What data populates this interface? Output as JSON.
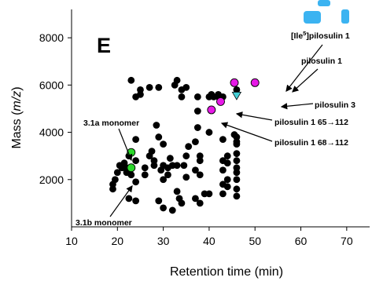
{
  "chart_data": {
    "type": "scatter",
    "panel_label": "E",
    "xlabel": "Retention time (min)",
    "ylabel_prefix": "Mass (",
    "ylabel_italic": "m/z",
    "ylabel_suffix": ")",
    "xlim": [
      10,
      75
    ],
    "ylim": [
      0,
      9200
    ],
    "x_ticks": [
      10,
      20,
      30,
      40,
      50,
      60,
      70
    ],
    "y_ticks": [
      2000,
      4000,
      6000,
      8000
    ],
    "grid": false,
    "colors": {
      "background_points": "#000000",
      "monomer_points": "#2bd82b",
      "pilosulin_points": "#e619e6",
      "pilosulin3_point": "#45cfd6",
      "axis": "#000000",
      "watermark": "#19a6ef"
    },
    "series": [
      {
        "marker": "black-circle",
        "points": [
          [
            19,
            1600
          ],
          [
            19,
            1800
          ],
          [
            19.5,
            2000
          ],
          [
            20,
            2300
          ],
          [
            20.5,
            2600
          ],
          [
            21,
            2500
          ],
          [
            21.5,
            2700
          ],
          [
            22,
            2500
          ],
          [
            22,
            2300
          ],
          [
            22.5,
            3000
          ],
          [
            22.5,
            1200
          ],
          [
            23,
            2200
          ],
          [
            24,
            1100
          ],
          [
            24,
            1900
          ],
          [
            24,
            2800
          ],
          [
            24,
            3700
          ],
          [
            24,
            5500
          ],
          [
            23,
            6200
          ],
          [
            25,
            5800
          ],
          [
            25,
            5600
          ],
          [
            26,
            2500
          ],
          [
            26,
            2200
          ],
          [
            27,
            3000
          ],
          [
            27,
            5900
          ],
          [
            27.5,
            3200
          ],
          [
            28,
            2800
          ],
          [
            28,
            2600
          ],
          [
            28.5,
            4300
          ],
          [
            29,
            5900
          ],
          [
            29,
            3800
          ],
          [
            29,
            1100
          ],
          [
            29.5,
            2400
          ],
          [
            30,
            800
          ],
          [
            30,
            2000
          ],
          [
            30,
            2600
          ],
          [
            30,
            3500
          ],
          [
            31,
            2500
          ],
          [
            31,
            2200
          ],
          [
            31.5,
            2900
          ],
          [
            32,
            700
          ],
          [
            32,
            2600
          ],
          [
            32.5,
            6000
          ],
          [
            33,
            2600
          ],
          [
            33,
            1500
          ],
          [
            33,
            6200
          ],
          [
            33.5,
            1200
          ],
          [
            34,
            5800
          ],
          [
            34,
            5500
          ],
          [
            34,
            1000
          ],
          [
            34.5,
            2600
          ],
          [
            35,
            5900
          ],
          [
            35,
            2100
          ],
          [
            35,
            3000
          ],
          [
            35.5,
            3400
          ],
          [
            37,
            1200
          ],
          [
            37,
            3600
          ],
          [
            37,
            2400
          ],
          [
            37.5,
            5500
          ],
          [
            37.5,
            4900
          ],
          [
            37.5,
            4200
          ],
          [
            38,
            3000
          ],
          [
            38,
            2800
          ],
          [
            38,
            2200
          ],
          [
            38,
            1000
          ],
          [
            39,
            1400
          ],
          [
            40,
            4000
          ],
          [
            40,
            5500
          ],
          [
            40,
            1400
          ],
          [
            40.5,
            5600
          ],
          [
            41,
            5500
          ],
          [
            42,
            5500
          ],
          [
            42,
            5600
          ],
          [
            43,
            5500
          ],
          [
            43,
            3700
          ],
          [
            43,
            2800
          ],
          [
            43,
            2400
          ],
          [
            43,
            1800
          ],
          [
            43,
            1400
          ],
          [
            44,
            3000
          ],
          [
            44,
            2700
          ],
          [
            44,
            2000
          ],
          [
            44,
            1700
          ],
          [
            45.5,
            3900
          ],
          [
            46,
            3800
          ],
          [
            46,
            3600
          ],
          [
            46,
            3500
          ],
          [
            46,
            3100
          ],
          [
            46,
            2800
          ],
          [
            46,
            2500
          ],
          [
            46,
            2300
          ],
          [
            46,
            2000
          ],
          [
            46,
            1600
          ],
          [
            46,
            1300
          ],
          [
            46,
            5800
          ]
        ]
      },
      {
        "marker": "green-circle",
        "points": [
          [
            23,
            3150
          ],
          [
            23,
            2500
          ]
        ]
      },
      {
        "marker": "magenta-circle",
        "points": [
          [
            45.5,
            6100
          ],
          [
            50,
            6100
          ],
          [
            42.5,
            5300
          ],
          [
            40.5,
            4950
          ]
        ]
      },
      {
        "marker": "cyan-triangle",
        "points": [
          [
            46,
            5550
          ]
        ]
      }
    ],
    "annotations": {
      "ile5_prefix": "[Ile",
      "ile5_sup": "5",
      "ile5_suffix": "]pilosulin 1",
      "pilosulin1": "pilosulin 1",
      "pilosulin3": "pilosulin 3",
      "pilosulin1_65_112": "pilosulin 1 65→112",
      "pilosulin1_68_112": "pilosulin 1 68→112",
      "monomer_3_1a": "3.1a monomer",
      "monomer_3_1b": "3.1b monomer"
    }
  }
}
